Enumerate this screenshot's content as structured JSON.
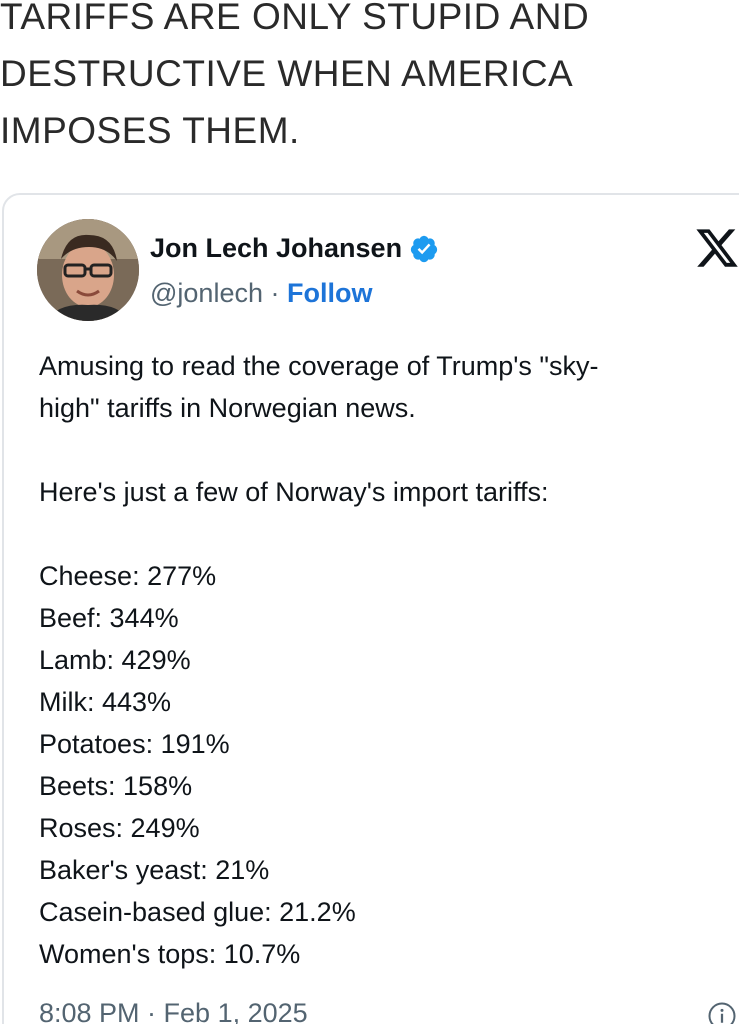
{
  "headline": {
    "lines": [
      "TARIFFS ARE ONLY STUPID AND",
      "DESTRUCTIVE WHEN AMERICA",
      "IMPOSES THEM."
    ]
  },
  "tweet": {
    "author": {
      "display_name": "Jon Lech Johansen",
      "handle": "@jonlech",
      "separator": " · ",
      "follow_label": "Follow",
      "verified": true
    },
    "platform_icon": "x-logo-icon",
    "text": {
      "intro_line1": "Amusing to read the coverage of Trump's \"sky-",
      "intro_line2": "high\" tariffs in Norwegian news.",
      "lead": "Here's just a few of Norway's import tariffs:",
      "tariffs": [
        "Cheese: 277%",
        "Beef: 344%",
        "Lamb: 429%",
        "Milk: 443%",
        "Potatoes: 191%",
        "Beets: 158%",
        "Roses: 249%",
        "Baker's yeast: 21%",
        "Casein-based glue: 21.2%",
        "Women's tops: 10.7%"
      ]
    },
    "timestamp": "8:08 PM · Feb 1, 2025"
  },
  "colors": {
    "follow": "#1d74d8",
    "verified": "#1d9bf0",
    "muted": "#536471",
    "text": "#0f1419",
    "border": "#e1e4e8"
  }
}
